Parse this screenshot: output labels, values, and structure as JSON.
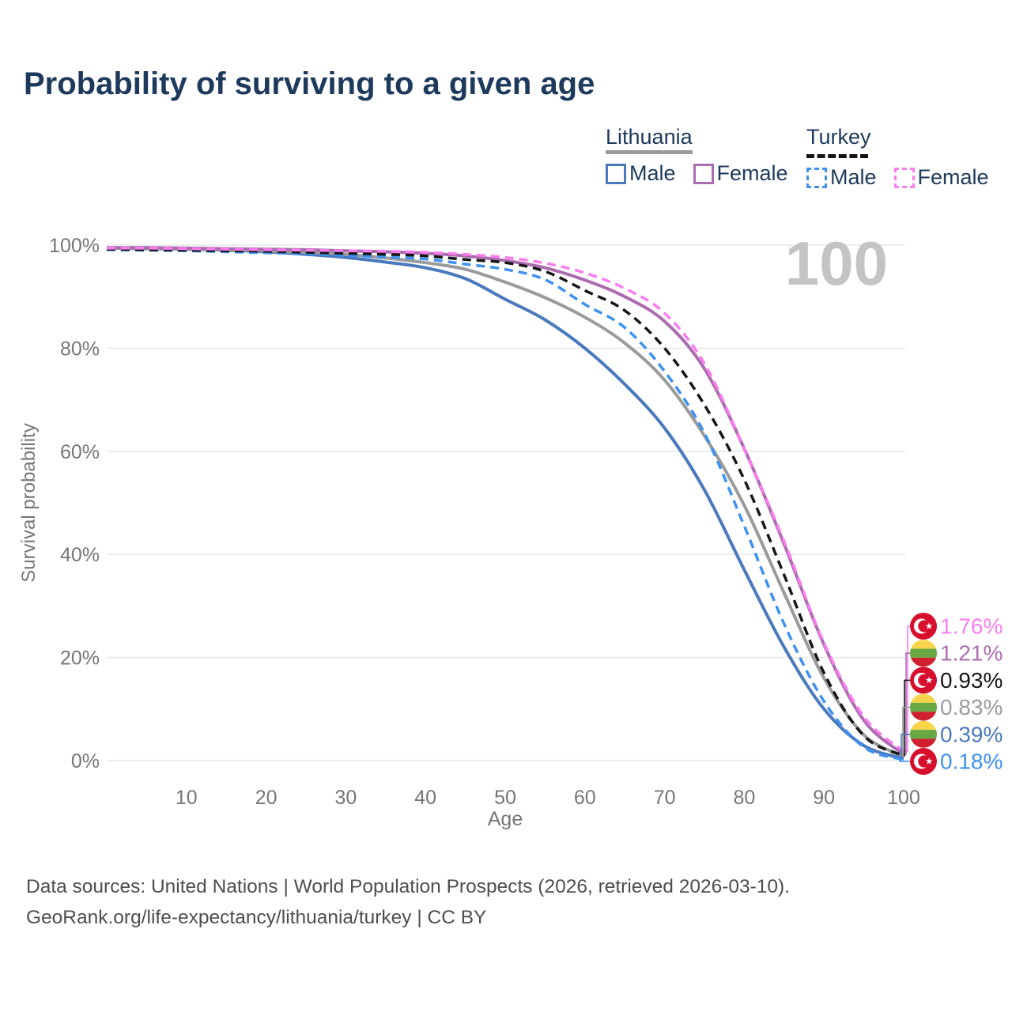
{
  "title": "Probability of surviving to a given age",
  "watermark": "100",
  "legend": {
    "lithuania": {
      "label": "Lithuania",
      "male": "Male",
      "female": "Female"
    },
    "turkey": {
      "label": "Turkey",
      "male": "Male",
      "female": "Female"
    }
  },
  "axes": {
    "y_label": "Survival probability",
    "x_label": "Age"
  },
  "colors": {
    "title_text": "#1d3a5c",
    "axis_text": "#767676",
    "grid_line": "#e7e7e7",
    "watermark": "#c4c4c4",
    "footer_text": "#4e4e4e",
    "lithuania_male": "#4a79bd",
    "lithuania_female": "#ac6cb0",
    "lithuania_total": "#9b9b9b",
    "turkey_male": "#3e91f0",
    "turkey_female": "#fb7cee",
    "turkey_total": "#161616",
    "turkey_flag_red": "#d60f2d",
    "lithuania_flag_yellow": "#f7d449",
    "lithuania_flag_green": "#67a744",
    "lithuania_flag_red": "#d0202f"
  },
  "chart_data": {
    "type": "line",
    "title": "Probability of surviving to a given age",
    "xlabel": "Age",
    "ylabel": "Survival probability",
    "unit": "percent",
    "xlim": [
      0,
      100
    ],
    "ylim": [
      0,
      100
    ],
    "grid": "horizontal",
    "legend_position": "top-right",
    "age_watermark": "100",
    "x_ticks": [
      10,
      20,
      30,
      40,
      50,
      60,
      70,
      80,
      90,
      100
    ],
    "y_ticks": [
      {
        "label": "0%",
        "value": 0
      },
      {
        "label": "20%",
        "value": 20
      },
      {
        "label": "40%",
        "value": 40
      },
      {
        "label": "60%",
        "value": 60
      },
      {
        "label": "80%",
        "value": 80
      },
      {
        "label": "100%",
        "value": 100
      }
    ],
    "x": [
      0,
      5,
      10,
      15,
      20,
      25,
      30,
      35,
      40,
      45,
      50,
      55,
      60,
      65,
      70,
      75,
      80,
      85,
      90,
      95,
      100
    ],
    "series": [
      {
        "key": "lt_male",
        "name": "Lithuania Male",
        "country": "Lithuania",
        "sex": "Male",
        "line": "solid",
        "color": "#4a79bd",
        "flag": "lithuania",
        "end_label": "0.39%",
        "values": [
          99.4,
          99.3,
          99.2,
          99.0,
          98.7,
          98.2,
          97.6,
          96.7,
          95.6,
          93.5,
          89.5,
          85.5,
          80.0,
          73.0,
          64.5,
          52.5,
          37.0,
          22.0,
          10.0,
          2.9,
          0.39
        ]
      },
      {
        "key": "lt_total",
        "name": "Lithuania Both sexes",
        "country": "Lithuania",
        "sex": "Both",
        "line": "solid",
        "color": "#9b9b9b",
        "flag": "lithuania",
        "end_label": "0.83%",
        "values": [
          99.4,
          99.3,
          99.2,
          99.1,
          98.9,
          98.6,
          98.2,
          97.5,
          96.6,
          95.3,
          92.8,
          89.8,
          86.0,
          81.0,
          73.8,
          63.0,
          49.5,
          32.5,
          16.0,
          5.0,
          0.83
        ]
      },
      {
        "key": "lt_female",
        "name": "Lithuania Female",
        "country": "Lithuania",
        "sex": "Female",
        "line": "solid",
        "color": "#ac6cb0",
        "flag": "lithuania",
        "end_label": "1.21%",
        "values": [
          99.5,
          99.5,
          99.4,
          99.3,
          99.2,
          99.1,
          98.9,
          98.7,
          98.4,
          97.9,
          97.0,
          95.6,
          93.2,
          90.0,
          85.2,
          76.0,
          60.5,
          42.0,
          22.5,
          7.8,
          1.21
        ]
      },
      {
        "key": "tr_male",
        "name": "Turkey Male",
        "country": "Turkey",
        "sex": "Male",
        "line": "dashed",
        "color": "#3e91f0",
        "flag": "turkey",
        "end_label": "0.18%",
        "values": [
          99.1,
          99.0,
          98.9,
          98.7,
          98.5,
          98.3,
          98.0,
          97.7,
          97.3,
          96.3,
          95.3,
          93.3,
          88.5,
          84.0,
          75.5,
          63.5,
          45.5,
          26.5,
          11.5,
          2.6,
          0.18
        ]
      },
      {
        "key": "tr_total",
        "name": "Turkey Both sexes",
        "country": "Turkey",
        "sex": "Both",
        "line": "dashed",
        "color": "#161616",
        "flag": "turkey",
        "end_label": "0.93%",
        "values": [
          99.2,
          99.1,
          99.0,
          98.9,
          98.8,
          98.6,
          98.4,
          98.2,
          97.9,
          97.2,
          96.6,
          94.9,
          91.2,
          87.3,
          80.0,
          69.0,
          54.5,
          36.0,
          17.0,
          4.8,
          0.93
        ]
      },
      {
        "key": "tr_female",
        "name": "Turkey Female",
        "country": "Turkey",
        "sex": "Female",
        "line": "dashed",
        "color": "#fb7cee",
        "flag": "turkey",
        "end_label": "1.76%",
        "values": [
          99.4,
          99.4,
          99.3,
          99.2,
          99.1,
          99.0,
          98.9,
          98.8,
          98.6,
          98.2,
          97.6,
          96.5,
          94.6,
          91.6,
          86.8,
          77.0,
          60.5,
          42.5,
          22.8,
          8.5,
          1.76
        ]
      }
    ]
  },
  "footer": {
    "line1": "Data sources: United Nations | World Population Prospects (2026, retrieved 2026-03-10).",
    "line2": "GeoRank.org/life-expectancy/lithuania/turkey | CC BY"
  }
}
